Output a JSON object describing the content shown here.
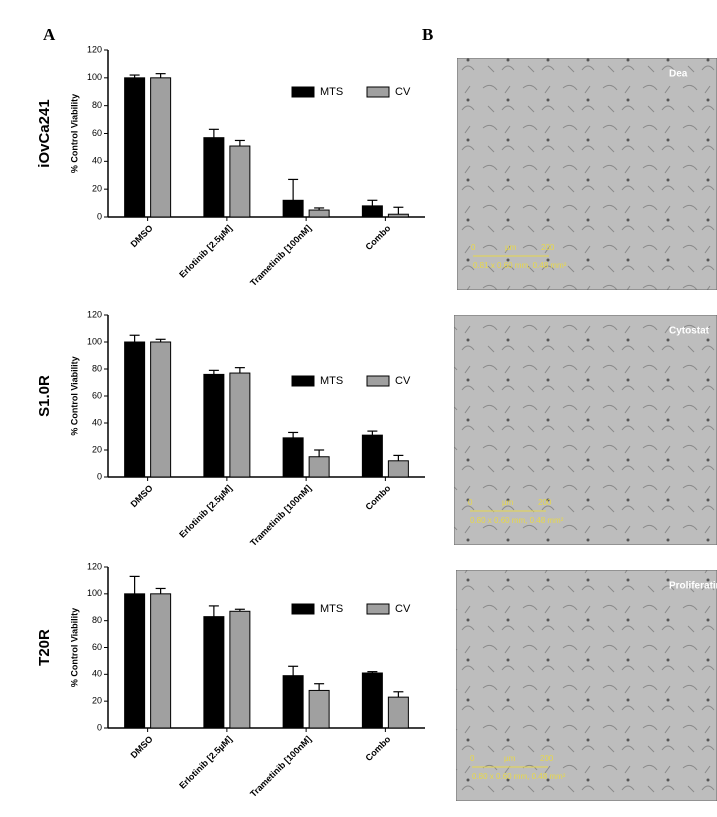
{
  "panel_labels": [
    "A",
    "B"
  ],
  "images": [
    {
      "label": "Dea",
      "scale_zero": "0",
      "scale_unit": "µm",
      "scale_max": "200",
      "scale_text": "0.81 x 0.60 mm, 0.48 mm²"
    },
    {
      "label": "Cytostat",
      "scale_zero": "0",
      "scale_unit": "µm",
      "scale_max": "200",
      "scale_text": "0.80 x 0.60 mm, 0.48 mm²"
    },
    {
      "label": "Proliferatin",
      "scale_zero": "0",
      "scale_unit": "µm",
      "scale_max": "200",
      "scale_text": "0.80 x 0.60 mm, 0.48 mm²"
    }
  ],
  "chart_data": [
    {
      "type": "bar",
      "title": "iOvCa241",
      "y_label": "% Control Viability",
      "categories": [
        "DMSO",
        "Erlotinib [2.5µM]",
        "Trametinib [100nM]",
        "Combo"
      ],
      "series": [
        {
          "name": "MTS",
          "color": "#000000",
          "values": [
            100,
            57,
            12,
            8
          ],
          "errors": [
            2,
            6,
            15,
            4
          ]
        },
        {
          "name": "CV",
          "color": "#a0a0a0",
          "values": [
            100,
            51,
            5,
            2
          ],
          "errors": [
            3,
            4,
            1.5,
            5
          ]
        }
      ],
      "ylim": [
        0,
        120
      ],
      "yticks": [
        0,
        20,
        40,
        60,
        80,
        100,
        120
      ],
      "legend": "upper right"
    },
    {
      "type": "bar",
      "title": "S1.0R",
      "y_label": "% Control Viability",
      "categories": [
        "DMSO",
        "Erlotinib [2.5µM]",
        "Trametinib [100nM]",
        "Combo"
      ],
      "series": [
        {
          "name": "MTS",
          "color": "#000000",
          "values": [
            100,
            76,
            29,
            31
          ],
          "errors": [
            5,
            3,
            4,
            3
          ]
        },
        {
          "name": "CV",
          "color": "#a0a0a0",
          "values": [
            100,
            77,
            15,
            12
          ],
          "errors": [
            2,
            4,
            5,
            4
          ]
        }
      ],
      "ylim": [
        0,
        120
      ],
      "yticks": [
        0,
        20,
        40,
        60,
        80,
        100,
        120
      ],
      "legend": "center right"
    },
    {
      "type": "bar",
      "title": "T20R",
      "y_label": "% Control Viability",
      "categories": [
        "DMSO",
        "Erlotinib [2.5µM]",
        "Trametinib [100nM]",
        "Combo"
      ],
      "series": [
        {
          "name": "MTS",
          "color": "#000000",
          "values": [
            100,
            83,
            39,
            41
          ],
          "errors": [
            13,
            8,
            7,
            1
          ]
        },
        {
          "name": "CV",
          "color": "#a0a0a0",
          "values": [
            100,
            87,
            28,
            23
          ],
          "errors": [
            4,
            1.5,
            5,
            4
          ]
        }
      ],
      "ylim": [
        0,
        120
      ],
      "yticks": [
        0,
        20,
        40,
        60,
        80,
        100,
        120
      ],
      "legend": "upper right"
    }
  ]
}
